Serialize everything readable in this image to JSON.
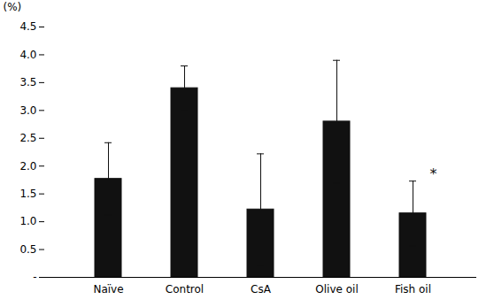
{
  "chart_data": {
    "type": "bar",
    "categories": [
      "Naïve",
      "Control",
      "CsA",
      "Olive oil",
      "Fish oil"
    ],
    "values": [
      1.77,
      3.4,
      1.22,
      2.8,
      1.15
    ],
    "errors": [
      0.65,
      0.4,
      1.0,
      1.1,
      0.58
    ],
    "color": "#111111",
    "ylabel": "(%)",
    "ylim": [
      0,
      4.5
    ],
    "yticks": [
      {
        "value": 0,
        "label": "-"
      },
      0.5,
      {
        "value": 1.0,
        "label": "1.0"
      },
      1.5,
      {
        "value": 2.0,
        "label": "2.0"
      },
      2.5,
      {
        "value": 3.0,
        "label": "3.0"
      },
      3.5,
      {
        "value": 4.0,
        "label": "4.0"
      },
      4.5
    ],
    "annotations": [
      {
        "text": "*",
        "category": "Fish oil"
      }
    ],
    "grid": false
  }
}
